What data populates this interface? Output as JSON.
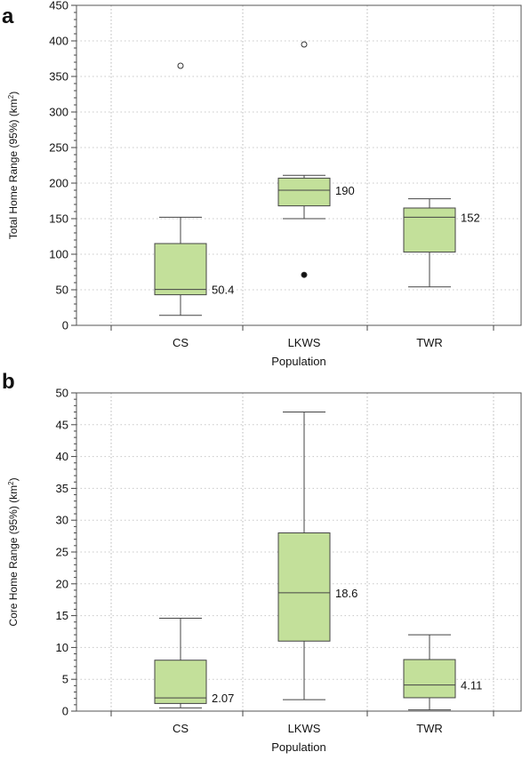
{
  "chart_data": [
    {
      "panel_letter": "a",
      "type": "box",
      "categories": [
        "CS",
        "LKWS",
        "TWR"
      ],
      "xlabel": "Population",
      "ylabel_main": "Total Home Range (95%) (km",
      "ylabel_sup": "2",
      "ylabel_end": ")",
      "ylim": [
        0,
        450
      ],
      "yticks": [
        0,
        50,
        100,
        150,
        200,
        250,
        300,
        350,
        400,
        450
      ],
      "grid": true,
      "boxes": [
        {
          "category": "CS",
          "whisker_low": 14,
          "q1": 43,
          "median": 50.4,
          "q3": 115,
          "whisker_high": 152,
          "median_label": "50.4",
          "outliers": [
            {
              "y": 365,
              "style": "open"
            }
          ]
        },
        {
          "category": "LKWS",
          "whisker_low": 150,
          "q1": 168,
          "median": 190,
          "q3": 207,
          "whisker_high": 211,
          "median_label": "190",
          "outliers": [
            {
              "y": 395,
              "style": "open"
            },
            {
              "y": 71,
              "style": "filled"
            }
          ]
        },
        {
          "category": "TWR",
          "whisker_low": 54,
          "q1": 103,
          "median": 152,
          "q3": 165,
          "whisker_high": 178,
          "median_label": "152",
          "outliers": []
        }
      ]
    },
    {
      "panel_letter": "b",
      "type": "box",
      "categories": [
        "CS",
        "LKWS",
        "TWR"
      ],
      "xlabel": "Population",
      "ylabel_main": "Core Home Range (95%) (km",
      "ylabel_sup": "2",
      "ylabel_end": ")",
      "ylim": [
        0,
        50
      ],
      "yticks": [
        0,
        5,
        10,
        15,
        20,
        25,
        30,
        35,
        40,
        45,
        50
      ],
      "grid": true,
      "boxes": [
        {
          "category": "CS",
          "whisker_low": 0.5,
          "q1": 1.2,
          "median": 2.07,
          "q3": 8,
          "whisker_high": 14.6,
          "median_label": "2.07",
          "outliers": []
        },
        {
          "category": "LKWS",
          "whisker_low": 1.8,
          "q1": 11,
          "median": 18.6,
          "q3": 28,
          "whisker_high": 47,
          "median_label": "18.6",
          "outliers": []
        },
        {
          "category": "TWR",
          "whisker_low": 0.2,
          "q1": 2.1,
          "median": 4.11,
          "q3": 8.1,
          "whisker_high": 12,
          "median_label": "4.11",
          "outliers": []
        }
      ]
    }
  ]
}
